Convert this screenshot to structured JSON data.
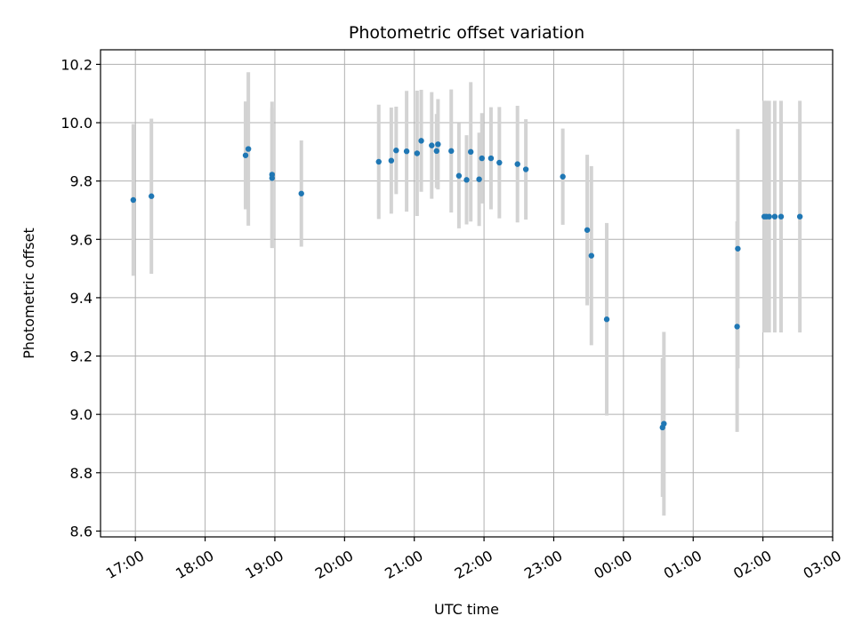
{
  "chart_data": {
    "type": "scatter",
    "title": "Photometric offset variation",
    "xlabel": "UTC time",
    "ylabel": "Photometric offset",
    "x_unit": "hours",
    "xlim": [
      16.5,
      27.0
    ],
    "ylim": [
      8.58,
      10.25
    ],
    "grid": true,
    "x_ticks": [
      17,
      18,
      19,
      20,
      21,
      22,
      23,
      24,
      25,
      26,
      27
    ],
    "x_tick_labels": [
      "17:00",
      "18:00",
      "19:00",
      "20:00",
      "21:00",
      "22:00",
      "23:00",
      "00:00",
      "01:00",
      "02:00",
      "03:00"
    ],
    "y_ticks": [
      8.6,
      8.8,
      9.0,
      9.2,
      9.4,
      9.6,
      9.8,
      10.0,
      10.2
    ],
    "y_tick_labels": [
      "8.6",
      "8.8",
      "9.0",
      "9.2",
      "9.4",
      "9.6",
      "9.8",
      "10.0",
      "10.2"
    ],
    "colors": {
      "point": "#1f77b4",
      "errorbar": "#d3d3d3",
      "grid": "#b0b0b0"
    },
    "points": [
      {
        "x": 16.97,
        "y": 9.735,
        "err": 0.26
      },
      {
        "x": 17.23,
        "y": 9.748,
        "err": 0.266
      },
      {
        "x": 18.58,
        "y": 9.888,
        "err": 0.185
      },
      {
        "x": 18.62,
        "y": 9.91,
        "err": 0.263
      },
      {
        "x": 18.96,
        "y": 9.822,
        "err": 0.25
      },
      {
        "x": 18.96,
        "y": 9.81,
        "err": 0.24
      },
      {
        "x": 19.38,
        "y": 9.757,
        "err": 0.182
      },
      {
        "x": 20.49,
        "y": 9.866,
        "err": 0.196
      },
      {
        "x": 20.67,
        "y": 9.87,
        "err": 0.182
      },
      {
        "x": 20.74,
        "y": 9.905,
        "err": 0.15
      },
      {
        "x": 20.89,
        "y": 9.902,
        "err": 0.207
      },
      {
        "x": 21.04,
        "y": 9.895,
        "err": 0.215
      },
      {
        "x": 21.1,
        "y": 9.938,
        "err": 0.175
      },
      {
        "x": 21.25,
        "y": 9.922,
        "err": 0.183
      },
      {
        "x": 21.32,
        "y": 9.903,
        "err": 0.127
      },
      {
        "x": 21.34,
        "y": 9.926,
        "err": 0.155
      },
      {
        "x": 21.53,
        "y": 9.903,
        "err": 0.211
      },
      {
        "x": 21.64,
        "y": 9.818,
        "err": 0.18
      },
      {
        "x": 21.75,
        "y": 9.804,
        "err": 0.153
      },
      {
        "x": 21.81,
        "y": 9.9,
        "err": 0.239
      },
      {
        "x": 21.93,
        "y": 9.806,
        "err": 0.16
      },
      {
        "x": 21.97,
        "y": 9.878,
        "err": 0.155
      },
      {
        "x": 22.1,
        "y": 9.878,
        "err": 0.175
      },
      {
        "x": 22.22,
        "y": 9.863,
        "err": 0.191
      },
      {
        "x": 22.48,
        "y": 9.858,
        "err": 0.2
      },
      {
        "x": 22.6,
        "y": 9.84,
        "err": 0.172
      },
      {
        "x": 23.13,
        "y": 9.815,
        "err": 0.165
      },
      {
        "x": 23.48,
        "y": 9.632,
        "err": 0.258
      },
      {
        "x": 23.54,
        "y": 9.544,
        "err": 0.307
      },
      {
        "x": 23.76,
        "y": 9.326,
        "err": 0.33
      },
      {
        "x": 24.56,
        "y": 8.955,
        "err": 0.238
      },
      {
        "x": 24.58,
        "y": 8.968,
        "err": 0.315
      },
      {
        "x": 25.63,
        "y": 9.301,
        "err": 0.361
      },
      {
        "x": 25.64,
        "y": 9.568,
        "err": 0.41
      },
      {
        "x": 26.02,
        "y": 9.678,
        "err": 0.397
      },
      {
        "x": 26.05,
        "y": 9.678,
        "err": 0.397
      },
      {
        "x": 26.09,
        "y": 9.678,
        "err": 0.397
      },
      {
        "x": 26.17,
        "y": 9.678,
        "err": 0.397
      },
      {
        "x": 26.26,
        "y": 9.678,
        "err": 0.397
      },
      {
        "x": 26.53,
        "y": 9.678,
        "err": 0.397
      }
    ]
  }
}
